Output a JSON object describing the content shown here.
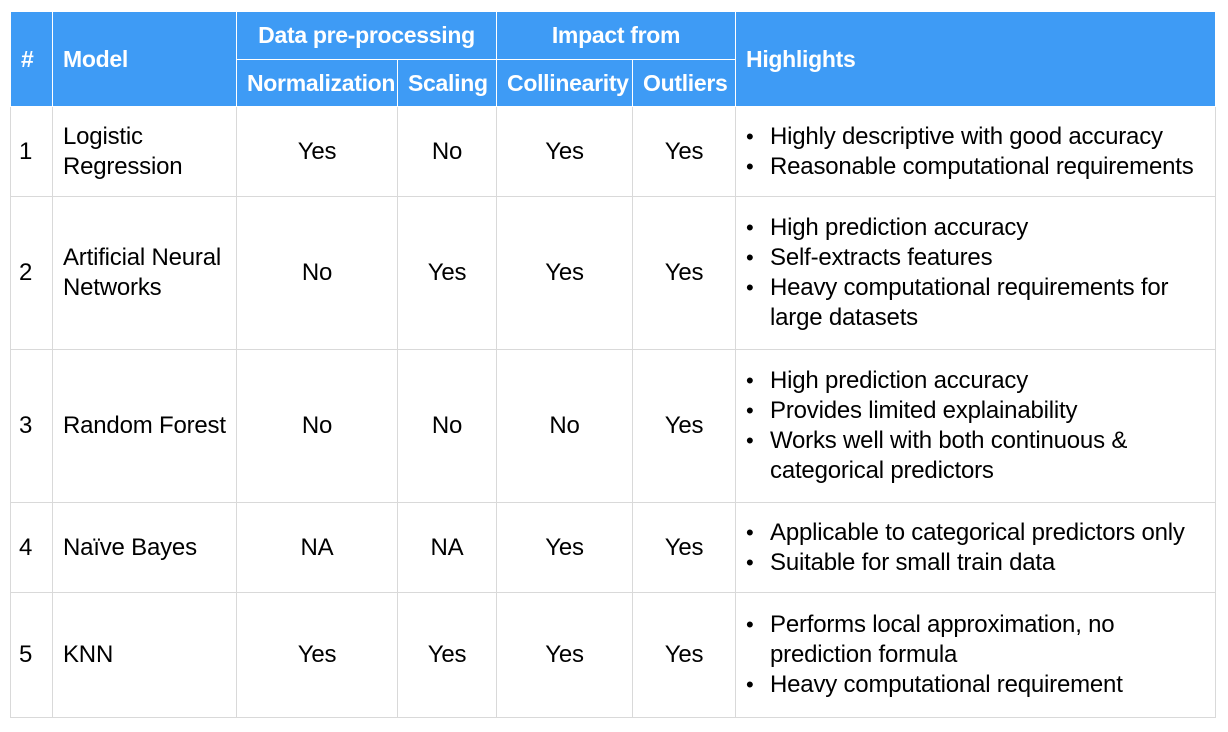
{
  "header": {
    "num": "#",
    "model": "Model",
    "data_preprocessing": "Data pre-processing",
    "impact_from": "Impact from",
    "highlights": "Highlights",
    "normalization": "Normalization",
    "scaling": "Scaling",
    "collinearity": "Collinearity",
    "outliers": "Outliers"
  },
  "colors": {
    "header_bg": "#3e9bf5",
    "header_text": "#ffffff",
    "grid": "#d9d9d9"
  },
  "rows": [
    {
      "num": "1",
      "model_line1": "Logistic",
      "model_line2": "Regression",
      "normalization": "Yes",
      "scaling": "No",
      "collinearity": "Yes",
      "outliers": "Yes",
      "highlights": [
        "Highly descriptive with good accuracy",
        "Reasonable computational requirements"
      ]
    },
    {
      "num": "2",
      "model_line1": "Artificial Neural",
      "model_line2": "Networks",
      "normalization": "No",
      "scaling": "Yes",
      "collinearity": "Yes",
      "outliers": "Yes",
      "highlights": [
        "High prediction accuracy",
        "Self-extracts features",
        "Heavy computational requirements for large datasets"
      ]
    },
    {
      "num": "3",
      "model_line1": "Random Forest",
      "normalization": "No",
      "scaling": "No",
      "collinearity": "No",
      "outliers": "Yes",
      "highlights": [
        "High prediction accuracy",
        "Provides limited explainability",
        "Works well with both continuous & categorical predictors"
      ]
    },
    {
      "num": "4",
      "model_line1": "Naïve Bayes",
      "normalization": "NA",
      "scaling": "NA",
      "collinearity": "Yes",
      "outliers": "Yes",
      "highlights": [
        "Applicable to categorical predictors only",
        "Suitable for small train data"
      ]
    },
    {
      "num": "5",
      "model_line1": "KNN",
      "normalization": "Yes",
      "scaling": "Yes",
      "collinearity": "Yes",
      "outliers": "Yes",
      "highlights": [
        "Performs local approximation, no prediction formula",
        "Heavy computational requirement"
      ]
    }
  ]
}
